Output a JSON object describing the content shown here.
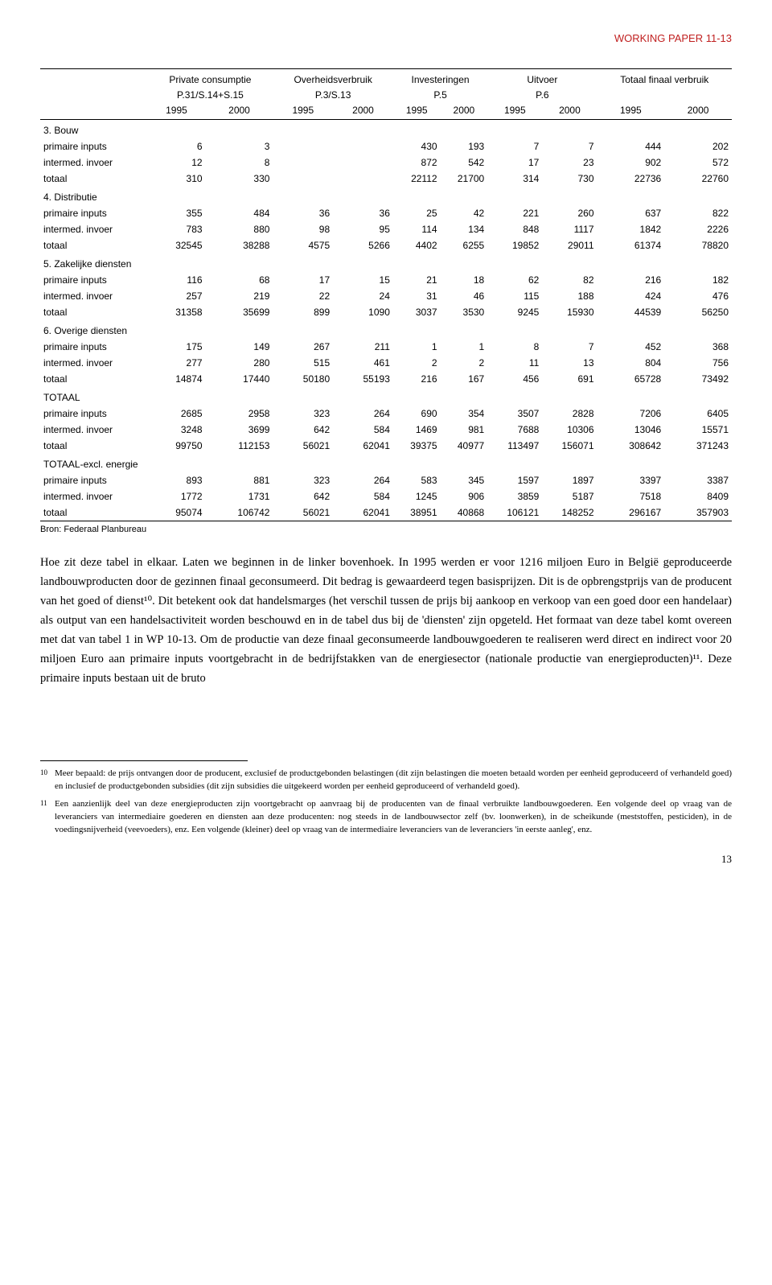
{
  "doc_header": "WORKING PAPER 11-13",
  "table": {
    "col_groups": [
      {
        "title": "Private consumptie",
        "code": "P.31/S.14+S.15"
      },
      {
        "title": "Overheidsverbruik",
        "code": "P.3/S.13"
      },
      {
        "title": "Investeringen",
        "code": "P.5"
      },
      {
        "title": "Uitvoer",
        "code": "P.6"
      },
      {
        "title": "Totaal finaal verbruik",
        "code": ""
      }
    ],
    "years": [
      "1995",
      "2000",
      "1995",
      "2000",
      "1995",
      "2000",
      "1995",
      "2000",
      "1995",
      "2000"
    ],
    "sections": [
      {
        "title": "3. Bouw",
        "rows": [
          {
            "label": "primaire inputs",
            "v": [
              "6",
              "3",
              "",
              "",
              "430",
              "193",
              "7",
              "7",
              "444",
              "202"
            ]
          },
          {
            "label": "intermed. invoer",
            "v": [
              "12",
              "8",
              "",
              "",
              "872",
              "542",
              "17",
              "23",
              "902",
              "572"
            ]
          },
          {
            "label": "totaal",
            "v": [
              "310",
              "330",
              "",
              "",
              "22112",
              "21700",
              "314",
              "730",
              "22736",
              "22760"
            ]
          }
        ]
      },
      {
        "title": "4. Distributie",
        "rows": [
          {
            "label": "primaire inputs",
            "v": [
              "355",
              "484",
              "36",
              "36",
              "25",
              "42",
              "221",
              "260",
              "637",
              "822"
            ]
          },
          {
            "label": "intermed. invoer",
            "v": [
              "783",
              "880",
              "98",
              "95",
              "114",
              "134",
              "848",
              "1117",
              "1842",
              "2226"
            ]
          },
          {
            "label": "totaal",
            "v": [
              "32545",
              "38288",
              "4575",
              "5266",
              "4402",
              "6255",
              "19852",
              "29011",
              "61374",
              "78820"
            ]
          }
        ]
      },
      {
        "title": "5. Zakelijke diensten",
        "rows": [
          {
            "label": "primaire inputs",
            "v": [
              "116",
              "68",
              "17",
              "15",
              "21",
              "18",
              "62",
              "82",
              "216",
              "182"
            ]
          },
          {
            "label": "intermed. invoer",
            "v": [
              "257",
              "219",
              "22",
              "24",
              "31",
              "46",
              "115",
              "188",
              "424",
              "476"
            ]
          },
          {
            "label": "totaal",
            "v": [
              "31358",
              "35699",
              "899",
              "1090",
              "3037",
              "3530",
              "9245",
              "15930",
              "44539",
              "56250"
            ]
          }
        ]
      },
      {
        "title": "6. Overige diensten",
        "rows": [
          {
            "label": "primaire inputs",
            "v": [
              "175",
              "149",
              "267",
              "211",
              "1",
              "1",
              "8",
              "7",
              "452",
              "368"
            ]
          },
          {
            "label": "intermed. invoer",
            "v": [
              "277",
              "280",
              "515",
              "461",
              "2",
              "2",
              "11",
              "13",
              "804",
              "756"
            ]
          },
          {
            "label": "totaal",
            "v": [
              "14874",
              "17440",
              "50180",
              "55193",
              "216",
              "167",
              "456",
              "691",
              "65728",
              "73492"
            ]
          }
        ]
      },
      {
        "title": "TOTAAL",
        "rows": [
          {
            "label": "primaire inputs",
            "v": [
              "2685",
              "2958",
              "323",
              "264",
              "690",
              "354",
              "3507",
              "2828",
              "7206",
              "6405"
            ]
          },
          {
            "label": "intermed. invoer",
            "v": [
              "3248",
              "3699",
              "642",
              "584",
              "1469",
              "981",
              "7688",
              "10306",
              "13046",
              "15571"
            ]
          },
          {
            "label": "totaal",
            "v": [
              "99750",
              "112153",
              "56021",
              "62041",
              "39375",
              "40977",
              "113497",
              "156071",
              "308642",
              "371243"
            ]
          }
        ]
      },
      {
        "title": "TOTAAL-excl. energie",
        "rows": [
          {
            "label": "primaire inputs",
            "v": [
              "893",
              "881",
              "323",
              "264",
              "583",
              "345",
              "1597",
              "1897",
              "3397",
              "3387"
            ]
          },
          {
            "label": "intermed. invoer",
            "v": [
              "1772",
              "1731",
              "642",
              "584",
              "1245",
              "906",
              "3859",
              "5187",
              "7518",
              "8409"
            ]
          },
          {
            "label": "totaal",
            "v": [
              "95074",
              "106742",
              "56021",
              "62041",
              "38951",
              "40868",
              "106121",
              "148252",
              "296167",
              "357903"
            ],
            "border": true
          }
        ]
      }
    ]
  },
  "source": "Bron: Federaal Planbureau",
  "body_text": "Hoe zit deze tabel in elkaar. Laten we beginnen in de linker bovenhoek. In 1995 werden er voor 1216 miljoen Euro in België geproduceerde landbouwproducten door de gezinnen finaal geconsumeerd. Dit bedrag is gewaardeerd tegen basisprijzen. Dit is de opbrengstprijs van de producent van het goed of dienst¹⁰. Dit betekent ook dat handelsmarges (het verschil tussen de prijs bij aankoop en verkoop van een goed door een handelaar) als output van een handelsactiviteit worden beschouwd en in de tabel dus bij de 'diensten' zijn opgeteld. Het formaat van deze tabel komt overeen met dat van tabel 1 in WP 10-13. Om de productie van deze finaal geconsumeerde landbouwgoederen te realiseren werd direct en indirect voor 20 miljoen Euro aan primaire inputs voortgebracht in de bedrijfstakken van de energiesector (nationale productie van energieproducten)¹¹. Deze primaire inputs bestaan uit de bruto",
  "footnotes": [
    {
      "num": "10",
      "text": "Meer bepaald: de prijs ontvangen door de producent, exclusief de productgebonden belastingen (dit zijn belastingen die moeten betaald worden per eenheid geproduceerd of verhandeld goed) en inclusief de productgebonden subsidies (dit zijn subsidies die uitgekeerd worden per eenheid geproduceerd of verhandeld goed)."
    },
    {
      "num": "11",
      "text": "Een aanzienlijk deel van deze energieproducten zijn voortgebracht op aanvraag bij de producenten van de finaal verbruikte landbouwgoederen. Een volgende deel op vraag van de leveranciers van intermediaire goederen en diensten aan deze producenten: nog steeds in de landbouwsector zelf (bv. loonwerken), in de scheikunde (meststoffen, pesticiden), in de voedingsnijverheid (veevoeders), enz. Een volgende (kleiner) deel op vraag van de intermediaire leveranciers van de leveranciers 'in eerste aanleg', enz."
    }
  ],
  "page_number": "13"
}
